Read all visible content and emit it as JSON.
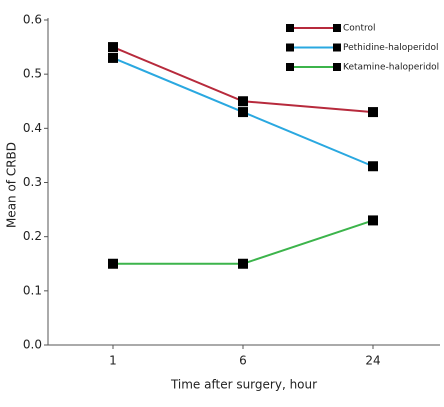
{
  "chart_data": {
    "type": "line",
    "x_label": "Time after surgery, hour",
    "y_label": "Mean of CRBD",
    "categories": [
      "1",
      "6",
      "24"
    ],
    "series": [
      {
        "name": "Control",
        "color": "#b72a3c",
        "values": [
          0.55,
          0.45,
          0.43
        ]
      },
      {
        "name": "Pethidine-haloperidol",
        "color": "#2aa8e0",
        "values": [
          0.53,
          0.43,
          0.33
        ]
      },
      {
        "name": "Ketamine-haloperidol",
        "color": "#3cb44b",
        "values": [
          0.15,
          0.15,
          0.23
        ]
      }
    ],
    "ylim": [
      0,
      0.6
    ],
    "yticks": [
      {
        "value": 0,
        "label": "0.0"
      },
      0.1,
      0.2,
      0.3,
      0.4,
      0.5,
      0.6
    ],
    "legend": "top-right",
    "marker_color": "#000000"
  }
}
